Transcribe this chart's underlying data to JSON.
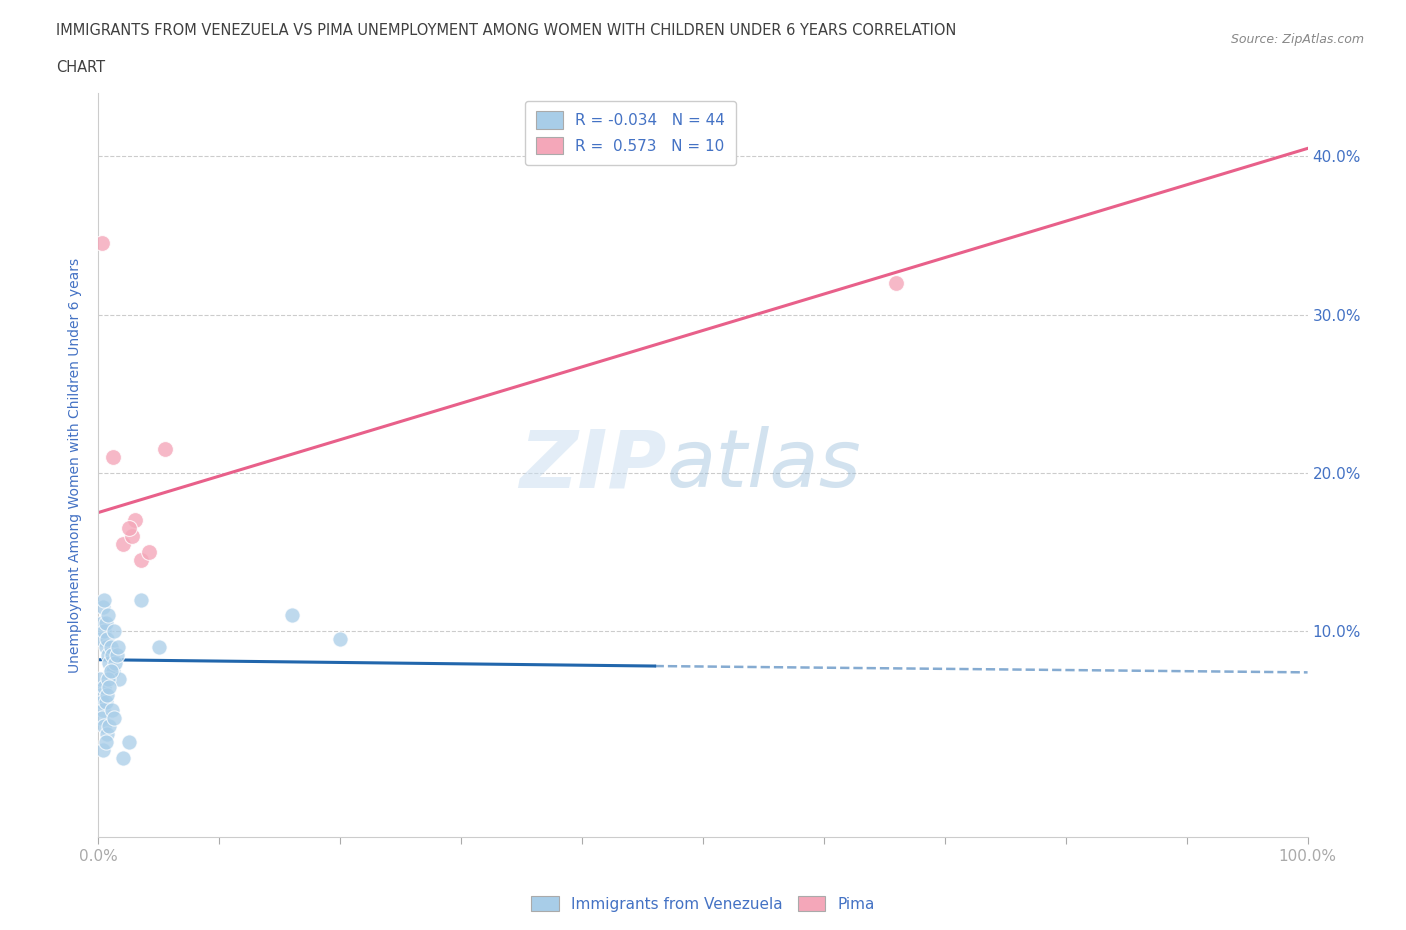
{
  "title_line1": "IMMIGRANTS FROM VENEZUELA VS PIMA UNEMPLOYMENT AMONG WOMEN WITH CHILDREN UNDER 6 YEARS CORRELATION",
  "title_line2": "CHART",
  "source": "Source: ZipAtlas.com",
  "ylabel": "Unemployment Among Women with Children Under 6 years",
  "xlim": [
    0,
    100
  ],
  "ylim": [
    -3,
    44
  ],
  "xticks": [
    0,
    10,
    20,
    30,
    40,
    50,
    60,
    70,
    80,
    90,
    100
  ],
  "yticks": [
    10,
    20,
    30,
    40
  ],
  "blue_color": "#a8cde8",
  "pink_color": "#f4a7b9",
  "blue_line_color": "#2166ac",
  "pink_line_color": "#e8608a",
  "blue_R": -0.034,
  "blue_N": 44,
  "pink_R": 0.573,
  "pink_N": 10,
  "blue_scatter_x": [
    0.2,
    0.3,
    0.4,
    0.5,
    0.5,
    0.6,
    0.6,
    0.7,
    0.8,
    0.8,
    0.9,
    1.0,
    1.0,
    1.1,
    1.2,
    1.3,
    1.4,
    1.5,
    1.6,
    1.7,
    0.1,
    0.2,
    0.3,
    0.4,
    0.5,
    0.6,
    0.7,
    0.8,
    0.9,
    1.0,
    0.3,
    0.5,
    0.7,
    0.9,
    1.1,
    1.3,
    2.0,
    2.5,
    0.4,
    0.6,
    16.0,
    20.0,
    3.5,
    5.0
  ],
  "blue_scatter_y": [
    9.5,
    10.5,
    11.5,
    12.0,
    10.0,
    9.0,
    10.5,
    9.5,
    11.0,
    8.5,
    8.0,
    7.5,
    9.0,
    8.5,
    7.5,
    10.0,
    8.0,
    8.5,
    9.0,
    7.0,
    7.0,
    6.0,
    5.5,
    5.0,
    6.5,
    5.5,
    6.0,
    7.0,
    6.5,
    7.5,
    4.5,
    4.0,
    3.5,
    4.0,
    5.0,
    4.5,
    2.0,
    3.0,
    2.5,
    3.0,
    11.0,
    9.5,
    12.0,
    9.0
  ],
  "pink_scatter_x": [
    0.3,
    1.2,
    2.0,
    2.8,
    3.5,
    4.2,
    3.0,
    2.5,
    66.0,
    5.5
  ],
  "pink_scatter_y": [
    34.5,
    21.0,
    15.5,
    16.0,
    14.5,
    15.0,
    17.0,
    16.5,
    32.0,
    21.5
  ],
  "blue_trend_x0": 0,
  "blue_trend_y0": 8.2,
  "blue_trend_x1": 46,
  "blue_trend_y1": 7.8,
  "blue_trend_x2": 100,
  "blue_trend_y2": 7.4,
  "pink_trend_x0": 0,
  "pink_trend_y0": 17.5,
  "pink_trend_x1": 100,
  "pink_trend_y1": 40.5,
  "watermark_zip": "ZIP",
  "watermark_atlas": "atlas",
  "background_color": "#ffffff",
  "grid_color": "#cccccc",
  "text_color": "#4472c4",
  "title_color": "#404040",
  "legend_label_1": "Immigrants from Venezuela",
  "legend_label_2": "Pima"
}
